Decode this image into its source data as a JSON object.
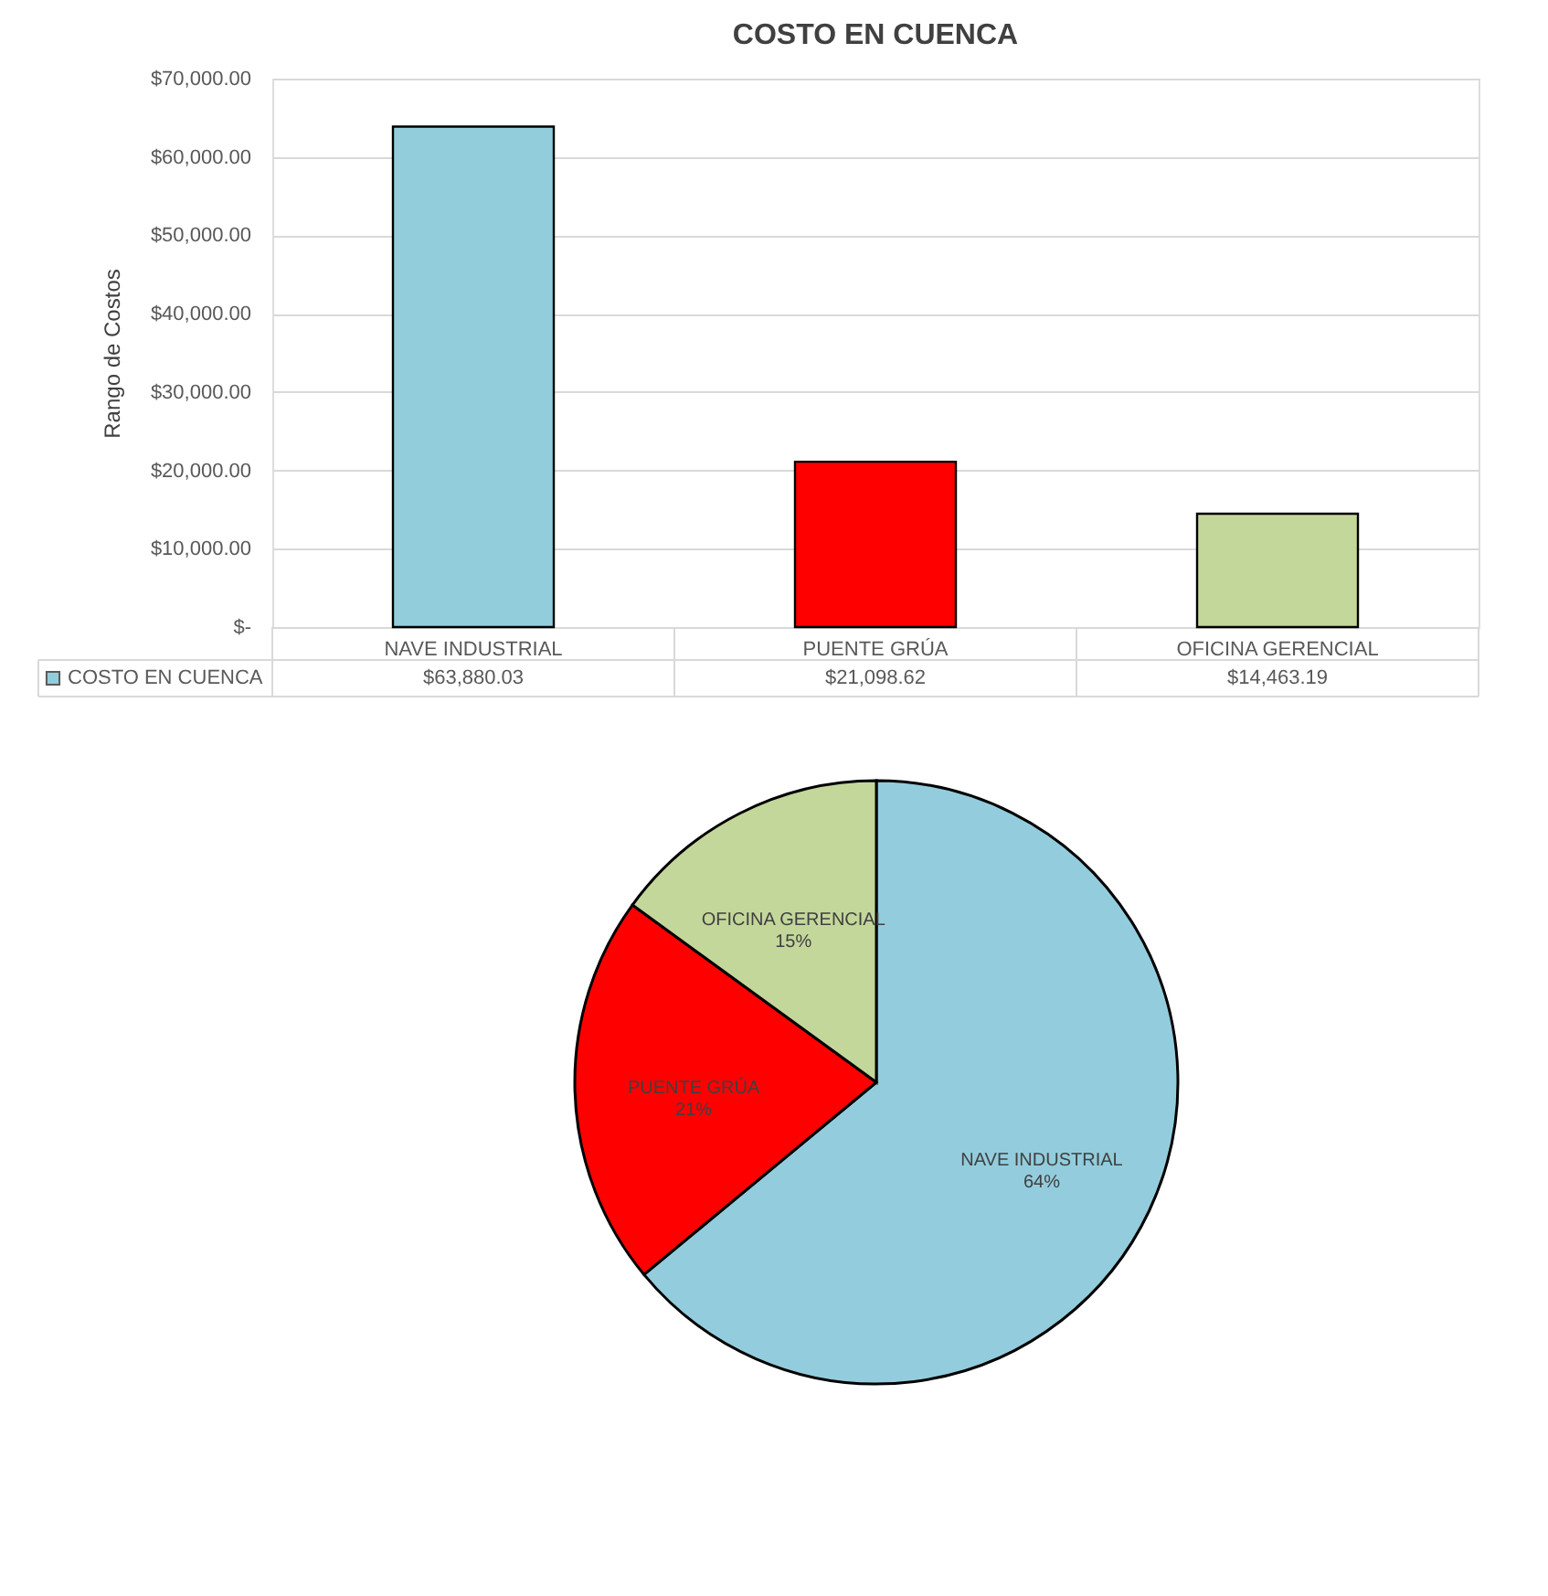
{
  "chart_data": [
    {
      "type": "bar",
      "title": "COSTO EN CUENCA",
      "ylabel": "Rango de Costos",
      "categories": [
        "NAVE INDUSTRIAL",
        "PUENTE GRÚA",
        "OFICINA GERENCIAL"
      ],
      "series": [
        {
          "name": "COSTO EN CUENCA",
          "color": "#92cddc",
          "colors": [
            "#92cddc",
            "#ff0000",
            "#c4d79b"
          ],
          "values": [
            63880.03,
            21098.62,
            14463.19
          ],
          "value_labels": [
            "$63,880.03",
            "$21,098.62",
            "$14,463.19"
          ]
        }
      ],
      "ylim": [
        0,
        70000
      ],
      "yticks": [
        {
          "value": 0,
          "label": "$-"
        },
        {
          "value": 10000,
          "label": "$10,000.00"
        },
        {
          "value": 20000,
          "label": "$20,000.00"
        },
        {
          "value": 30000,
          "label": "$30,000.00"
        },
        {
          "value": 40000,
          "label": "$40,000.00"
        },
        {
          "value": 50000,
          "label": "$50,000.00"
        },
        {
          "value": 60000,
          "label": "$60,000.00"
        },
        {
          "value": 70000,
          "label": "$70,000.00"
        }
      ],
      "grid": "y",
      "legend": "bottom",
      "data_labels": true
    },
    {
      "type": "pie",
      "categories": [
        "NAVE INDUSTRIAL",
        "PUENTE GRÚA",
        "OFICINA GERENCIAL"
      ],
      "values": [
        64,
        21,
        15
      ],
      "colors": [
        "#93cddd",
        "#ff0000",
        "#c4d79b"
      ],
      "value_labels": [
        "64%",
        "21%",
        "15%"
      ]
    }
  ]
}
